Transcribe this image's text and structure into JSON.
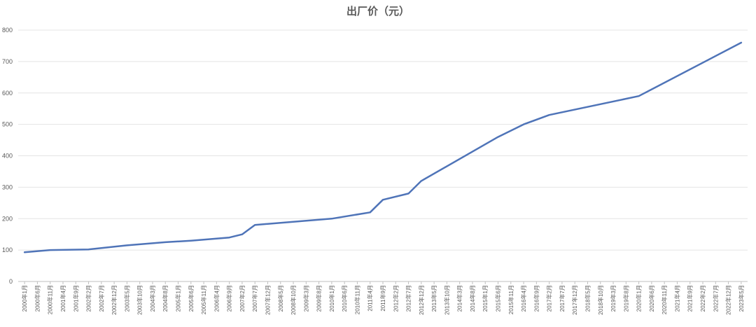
{
  "chart_data": {
    "type": "line",
    "title": "出厂价（元）",
    "xlabel": "",
    "ylabel": "",
    "ylim": [
      0,
      800
    ],
    "yticks": [
      0,
      100,
      200,
      300,
      400,
      500,
      600,
      700,
      800
    ],
    "grid": true,
    "legend": "none",
    "line_color": "#4f74b8",
    "x_tick_labels": [
      "2000年1月",
      "2000年6月",
      "2000年11月",
      "2001年4月",
      "2001年9月",
      "2002年2月",
      "2002年7月",
      "2002年12月",
      "2003年5月",
      "2003年10月",
      "2004年3月",
      "2004年8月",
      "2005年1月",
      "2005年6月",
      "2005年11月",
      "2006年4月",
      "2006年9月",
      "2007年2月",
      "2007年7月",
      "2007年12月",
      "2008年5月",
      "2008年10月",
      "2009年3月",
      "2009年8月",
      "2010年1月",
      "2010年6月",
      "2010年11月",
      "2011年4月",
      "2011年9月",
      "2012年2月",
      "2012年7月",
      "2012年12月",
      "2013年5月",
      "2013年10月",
      "2014年3月",
      "2014年8月",
      "2015年1月",
      "2015年6月",
      "2015年11月",
      "2016年4月",
      "2016年9月",
      "2017年2月",
      "2017年7月",
      "2017年12月",
      "2018年5月",
      "2018年10月",
      "2019年3月",
      "2019年8月",
      "2020年1月",
      "2020年6月",
      "2020年11月",
      "2021年4月",
      "2021年9月",
      "2022年2月",
      "2022年7月",
      "2022年12月",
      "2023年5月"
    ],
    "x": [
      "2000年1月",
      "2000年11月",
      "2002年2月",
      "2003年5月",
      "2004年8月",
      "2005年6月",
      "2006年9月",
      "2007年2月",
      "2007年7月",
      "2010年1月",
      "2011年4月",
      "2011年9月",
      "2012年7月",
      "2012年12月",
      "2015年6月",
      "2016年4月",
      "2017年2月",
      "2020年1月",
      "2023年5月"
    ],
    "values": [
      93,
      100,
      102,
      115,
      125,
      130,
      140,
      150,
      180,
      200,
      220,
      260,
      280,
      320,
      460,
      500,
      530,
      590,
      760
    ]
  }
}
